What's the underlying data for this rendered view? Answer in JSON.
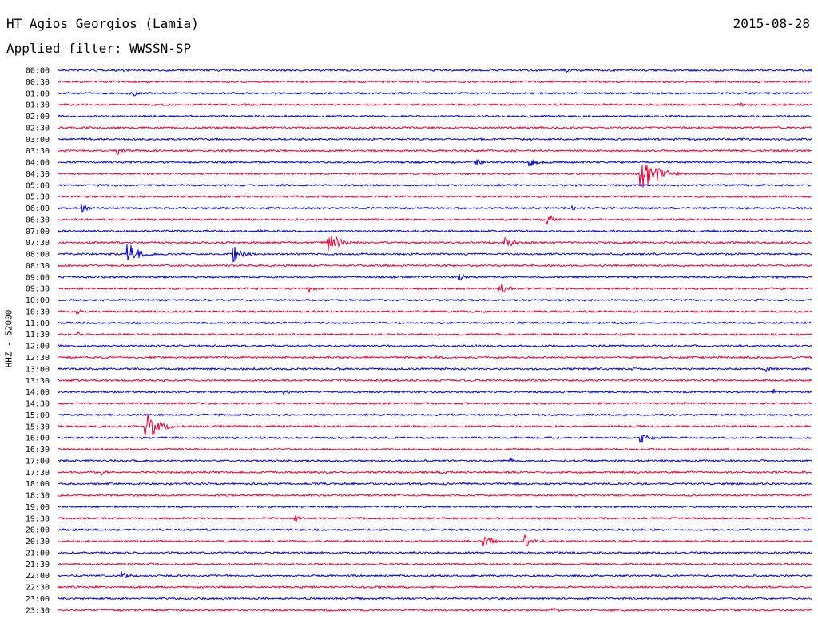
{
  "header": {
    "station": "HT Agios Georgios (Lamia)",
    "date": "2015-08-28",
    "filter": "Applied filter: WWSSN-SP"
  },
  "chart_data": {
    "type": "line",
    "ylabel": "HHZ - 52000",
    "colors": {
      "odd_row": "#0000dd",
      "even_row": "#ee0033"
    },
    "rows": [
      "00:00",
      "00:30",
      "01:00",
      "01:30",
      "02:00",
      "02:30",
      "03:00",
      "03:30",
      "04:00",
      "04:30",
      "05:00",
      "05:30",
      "06:00",
      "06:30",
      "07:00",
      "07:30",
      "08:00",
      "08:30",
      "09:00",
      "09:30",
      "10:00",
      "10:30",
      "11:00",
      "11:30",
      "12:00",
      "12:30",
      "13:00",
      "13:30",
      "14:00",
      "14:30",
      "15:00",
      "15:30",
      "16:00",
      "16:30",
      "17:00",
      "17:30",
      "18:00",
      "18:30",
      "19:00",
      "19:30",
      "20:00",
      "20:30",
      "21:00",
      "21:30",
      "22:00",
      "22:30",
      "23:00",
      "23:30"
    ],
    "x_range_minutes": [
      0,
      30
    ],
    "events": [
      {
        "row": "00:00",
        "minute": 20.2,
        "amp": 0.25
      },
      {
        "row": "01:00",
        "minute": 3.1,
        "amp": 0.3
      },
      {
        "row": "01:30",
        "minute": 27.2,
        "amp": 0.25
      },
      {
        "row": "03:30",
        "minute": 2.4,
        "amp": 0.45
      },
      {
        "row": "04:00",
        "minute": 16.7,
        "amp": 0.5
      },
      {
        "row": "04:00",
        "minute": 18.8,
        "amp": 0.8
      },
      {
        "row": "04:30",
        "minute": 23.2,
        "amp": 3.0
      },
      {
        "row": "06:00",
        "minute": 1.0,
        "amp": 0.6
      },
      {
        "row": "06:00",
        "minute": 20.5,
        "amp": 0.3
      },
      {
        "row": "06:30",
        "minute": 19.5,
        "amp": 0.8
      },
      {
        "row": "07:30",
        "minute": 10.8,
        "amp": 1.6
      },
      {
        "row": "07:30",
        "minute": 17.8,
        "amp": 1.2
      },
      {
        "row": "08:00",
        "minute": 2.8,
        "amp": 1.8
      },
      {
        "row": "08:00",
        "minute": 7.0,
        "amp": 1.2
      },
      {
        "row": "09:00",
        "minute": 16.0,
        "amp": 0.5
      },
      {
        "row": "09:30",
        "minute": 10.0,
        "amp": 0.4
      },
      {
        "row": "09:30",
        "minute": 17.6,
        "amp": 0.9
      },
      {
        "row": "10:30",
        "minute": 0.8,
        "amp": 0.3
      },
      {
        "row": "11:30",
        "minute": 0.8,
        "amp": 0.3
      },
      {
        "row": "13:00",
        "minute": 28.2,
        "amp": 0.35
      },
      {
        "row": "14:00",
        "minute": 9.0,
        "amp": 0.4
      },
      {
        "row": "14:00",
        "minute": 28.5,
        "amp": 0.3
      },
      {
        "row": "15:30",
        "minute": 3.5,
        "amp": 2.2
      },
      {
        "row": "16:00",
        "minute": 23.2,
        "amp": 0.9
      },
      {
        "row": "17:00",
        "minute": 18.0,
        "amp": 0.3
      },
      {
        "row": "17:30",
        "minute": 1.8,
        "amp": 0.3
      },
      {
        "row": "19:30",
        "minute": 9.5,
        "amp": 0.35
      },
      {
        "row": "20:30",
        "minute": 17.0,
        "amp": 0.9
      },
      {
        "row": "20:30",
        "minute": 18.6,
        "amp": 0.9
      },
      {
        "row": "22:00",
        "minute": 2.6,
        "amp": 0.5
      },
      {
        "row": "23:30",
        "minute": 19.7,
        "amp": 0.3
      }
    ]
  }
}
